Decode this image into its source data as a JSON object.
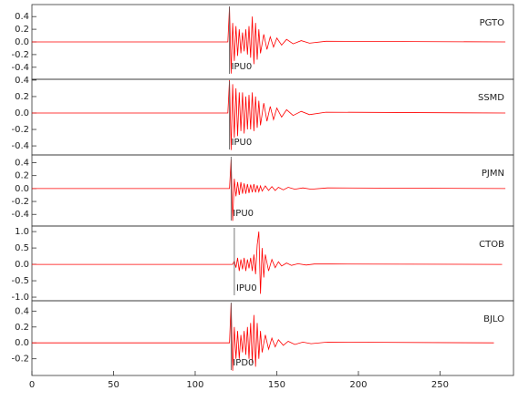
{
  "chart_data": [
    {
      "type": "line",
      "title": "PGTO",
      "color": "#ff0000",
      "x": [
        0,
        120,
        121,
        122,
        123,
        124,
        125,
        126,
        127,
        128,
        129,
        130,
        131,
        132,
        133,
        134,
        135,
        136,
        137,
        138,
        139,
        140,
        142,
        144,
        146,
        148,
        150,
        153,
        156,
        160,
        165,
        170,
        180,
        290
      ],
      "values": [
        0,
        0,
        0.55,
        -0.5,
        0.3,
        -0.3,
        0.25,
        -0.22,
        0.2,
        -0.18,
        0.15,
        -0.15,
        0.2,
        -0.2,
        0.25,
        -0.25,
        0.4,
        -0.35,
        0.3,
        -0.28,
        0.2,
        -0.18,
        0.12,
        -0.12,
        0.08,
        -0.08,
        0.06,
        -0.05,
        0.04,
        -0.03,
        0.02,
        -0.02,
        0.01,
        0
      ],
      "pick": {
        "x": 121,
        "label": "IPU0"
      },
      "xlim": [
        0,
        295
      ],
      "ylim": [
        -0.59,
        0.59
      ],
      "yticks": [
        -0.4,
        -0.2,
        {
          "value": 0,
          "label": "0.0"
        },
        0.2,
        0.4
      ]
    },
    {
      "type": "line",
      "title": "SSMD",
      "color": "#ff0000",
      "x": [
        0,
        120,
        121,
        122,
        123,
        124,
        125,
        126,
        127,
        128,
        129,
        130,
        131,
        132,
        133,
        134,
        135,
        136,
        137,
        138,
        139,
        140,
        142,
        144,
        146,
        148,
        150,
        153,
        156,
        160,
        165,
        170,
        180,
        290
      ],
      "values": [
        0,
        0,
        0.4,
        -0.45,
        0.35,
        -0.3,
        0.3,
        -0.28,
        0.25,
        -0.22,
        0.25,
        -0.25,
        0.2,
        -0.2,
        0.22,
        -0.2,
        0.25,
        -0.22,
        0.2,
        -0.18,
        0.15,
        -0.15,
        0.12,
        -0.1,
        0.08,
        -0.08,
        0.06,
        -0.05,
        0.04,
        -0.03,
        0.02,
        -0.02,
        0.01,
        0
      ],
      "pick": {
        "x": 121,
        "label": "IPU0"
      },
      "xlim": [
        0,
        295
      ],
      "ylim": [
        -0.51,
        0.41
      ],
      "yticks": [
        -0.4,
        -0.2,
        {
          "value": 0,
          "label": "0.0"
        },
        0.2,
        0.4
      ]
    },
    {
      "type": "line",
      "title": "PJMN",
      "color": "#ff0000",
      "x": [
        0,
        121,
        122,
        123,
        124,
        125,
        126,
        127,
        128,
        129,
        130,
        131,
        132,
        133,
        134,
        135,
        136,
        137,
        138,
        139,
        140,
        141,
        143,
        145,
        147,
        149,
        151,
        154,
        157,
        161,
        166,
        171,
        181,
        290
      ],
      "values": [
        0,
        0,
        0.45,
        -0.5,
        0.15,
        -0.12,
        0.1,
        -0.1,
        0.1,
        -0.08,
        0.08,
        -0.08,
        0.07,
        -0.07,
        0.06,
        -0.06,
        0.07,
        -0.06,
        0.05,
        -0.05,
        0.04,
        -0.04,
        0.04,
        -0.03,
        0.03,
        -0.03,
        0.02,
        -0.02,
        0.02,
        -0.01,
        0.01,
        -0.01,
        0.01,
        0
      ],
      "pick": {
        "x": 122,
        "label": "IPU0"
      },
      "xlim": [
        0,
        295
      ],
      "ylim": [
        -0.58,
        0.52
      ],
      "yticks": [
        -0.4,
        -0.2,
        {
          "value": 0,
          "label": "0.0"
        },
        0.2,
        0.4
      ]
    },
    {
      "type": "line",
      "title": "CTOB",
      "color": "#ff0000",
      "x": [
        0,
        123,
        124,
        125,
        126,
        127,
        128,
        129,
        130,
        131,
        132,
        133,
        134,
        135,
        136,
        137,
        138,
        139,
        140,
        141,
        142,
        143,
        145,
        147,
        149,
        151,
        153,
        156,
        159,
        163,
        168,
        173,
        183,
        288
      ],
      "values": [
        0,
        0,
        0.1,
        -0.1,
        0.2,
        -0.2,
        0.15,
        -0.15,
        0.2,
        -0.2,
        0.15,
        -0.12,
        0.2,
        -0.2,
        0.3,
        -0.3,
        0.6,
        1.0,
        -0.9,
        0.5,
        -0.4,
        0.3,
        -0.2,
        0.15,
        -0.1,
        0.08,
        -0.05,
        0.04,
        -0.03,
        0.02,
        -0.02,
        0.01,
        0.01,
        0
      ],
      "pick": {
        "x": 124,
        "label": "IPU0"
      },
      "xlim": [
        0,
        295
      ],
      "ylim": [
        -1.11,
        1.17
      ],
      "yticks": [
        {
          "value": -1,
          "label": "-1.0"
        },
        -0.5,
        {
          "value": 0,
          "label": "0.0"
        },
        0.5,
        {
          "value": 1,
          "label": "1.0"
        }
      ]
    },
    {
      "type": "line",
      "title": "BJLO",
      "color": "#ff0000",
      "x": [
        0,
        121,
        122,
        123,
        124,
        125,
        126,
        127,
        128,
        129,
        130,
        131,
        132,
        133,
        134,
        135,
        136,
        137,
        138,
        139,
        140,
        141,
        143,
        145,
        147,
        149,
        151,
        154,
        157,
        161,
        166,
        171,
        181,
        283
      ],
      "values": [
        0,
        0,
        0.5,
        -0.35,
        0.2,
        -0.2,
        0.15,
        -0.2,
        0.1,
        -0.12,
        0.15,
        -0.15,
        0.2,
        -0.2,
        0.25,
        -0.25,
        0.35,
        -0.3,
        0.25,
        -0.2,
        0.15,
        -0.12,
        0.1,
        -0.08,
        0.06,
        -0.05,
        0.04,
        -0.03,
        0.02,
        -0.02,
        0.01,
        -0.01,
        0.01,
        0
      ],
      "pick": {
        "x": 122,
        "label": "IPD0"
      },
      "xlim": [
        0,
        295
      ],
      "ylim": [
        -0.41,
        0.53
      ],
      "yticks": [
        -0.2,
        {
          "value": 0,
          "label": "0.0"
        },
        0.2,
        0.4
      ],
      "xticks": [
        0,
        50,
        100,
        150,
        200,
        250
      ]
    }
  ]
}
